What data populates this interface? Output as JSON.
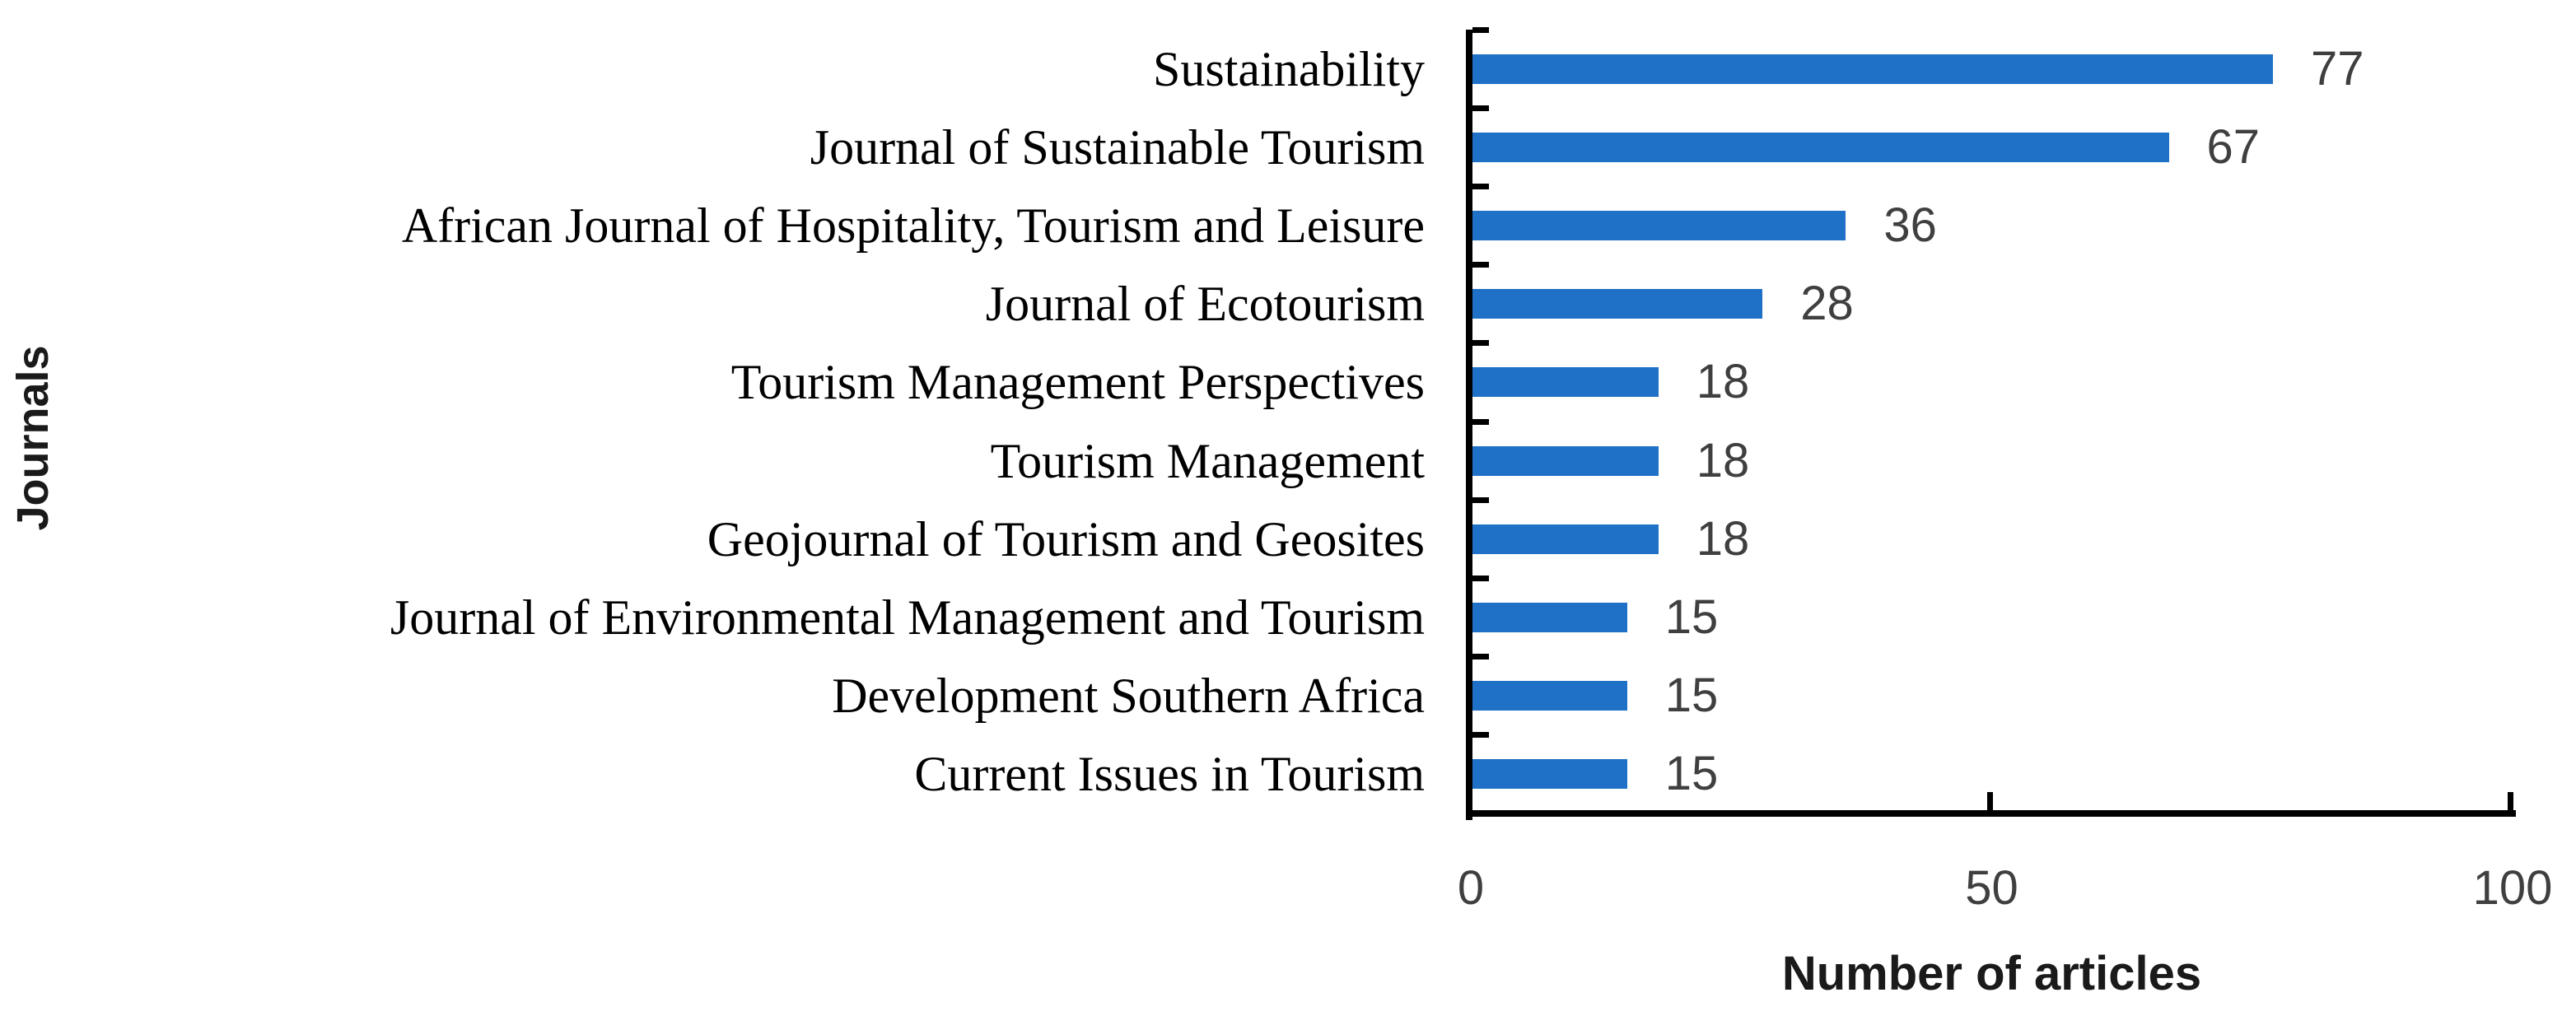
{
  "chart_data": {
    "type": "bar",
    "orientation": "horizontal",
    "categories": [
      "Sustainability",
      "Journal of Sustainable Tourism",
      "African Journal of Hospitality, Tourism and Leisure",
      "Journal of Ecotourism",
      "Tourism Management Perspectives",
      "Tourism Management",
      "Geojournal of Tourism and Geosites",
      "Journal of Environmental Management and Tourism",
      "Development Southern Africa",
      "Current Issues in Tourism"
    ],
    "values": [
      77,
      67,
      36,
      28,
      18,
      18,
      18,
      15,
      15,
      15
    ],
    "data_labels": [
      "77",
      "67",
      "36",
      "28",
      "18",
      "18",
      "18",
      "15",
      "15",
      "15"
    ],
    "xlabel": "Number of articles",
    "ylabel": "Journals",
    "xlim": [
      0,
      100
    ],
    "x_ticks": [
      0,
      50,
      100
    ],
    "x_tick_labels": [
      "0",
      "50",
      "100"
    ],
    "grid": "off",
    "legend": "none",
    "colors": {
      "bar": "#1E71C6",
      "value_label": "#3F3F3F",
      "tick_label": "#3F3F3F",
      "category_label": "#000000",
      "axis": "#000000",
      "background": "#FFFFFF"
    }
  }
}
